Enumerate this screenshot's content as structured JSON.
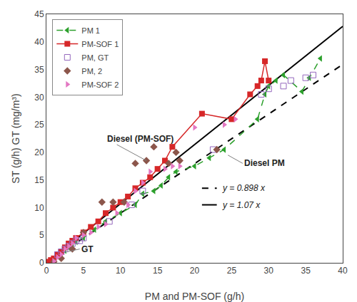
{
  "chart_data": {
    "type": "line",
    "xlabel": "PM and PM-SOF (g/h)",
    "ylabel": "ST (g/h) GT (mg/m³)",
    "xlim": [
      0,
      40
    ],
    "ylim": [
      0,
      45
    ],
    "xticks": [
      0,
      5,
      10,
      15,
      20,
      25,
      30,
      35,
      40
    ],
    "yticks": [
      0,
      5,
      10,
      15,
      20,
      25,
      30,
      35,
      40,
      45
    ],
    "grid": false,
    "legend": "upper left",
    "series": [
      {
        "type": "line",
        "x": [
          0,
          40
        ],
        "values": [
          0,
          35.92
        ],
        "line_style": "dashed",
        "color": "black"
      },
      {
        "type": "line",
        "x": [
          0,
          40
        ],
        "values": [
          0,
          42.8
        ],
        "line_style": "solid",
        "color": "black"
      },
      {
        "name": "PM 1",
        "type": "line",
        "line_style": "dashed",
        "marker": "triangle-left",
        "x": [
          0.5,
          0.8,
          1.0,
          1.5,
          2.0,
          2.5,
          3.0,
          3.5,
          4.0,
          5.0,
          6.5,
          8.0,
          10.0,
          12.0,
          13.0,
          14.5,
          15.5,
          16.5,
          17.5,
          20.0,
          22.0,
          24.0,
          28.5,
          29.5,
          30.0,
          31.0,
          32.0,
          34.5,
          35.5,
          37.0
        ],
        "values": [
          0.2,
          0.5,
          0.8,
          1.2,
          1.5,
          2.2,
          2.8,
          3.2,
          3.8,
          4.5,
          6.0,
          7.5,
          9.0,
          10.5,
          12.5,
          13.0,
          14.0,
          15.5,
          16.5,
          17.5,
          19.0,
          20.5,
          26.0,
          30.5,
          32.0,
          33.0,
          34.0,
          31.0,
          33.5,
          37.0
        ]
      },
      {
        "name": "PM-SOF 1",
        "type": "line",
        "line_style": "solid",
        "marker": "square",
        "x": [
          0.3,
          0.6,
          1.0,
          1.5,
          2.0,
          2.5,
          3.0,
          3.5,
          4.0,
          5.0,
          6.0,
          7.0,
          8.0,
          9.0,
          10.0,
          11.0,
          12.0,
          13.0,
          14.0,
          15.0,
          16.0,
          17.0,
          21.0,
          25.0,
          27.5,
          28.5,
          29.0,
          29.5,
          30.0
        ],
        "values": [
          0.2,
          0.5,
          0.8,
          1.5,
          2.0,
          2.8,
          3.5,
          4.0,
          4.5,
          5.5,
          6.5,
          7.5,
          9.0,
          10.0,
          11.0,
          12.0,
          13.5,
          14.5,
          15.5,
          17.0,
          18.5,
          21.0,
          27.0,
          26.0,
          30.5,
          32.0,
          33.0,
          36.5,
          33.0
        ]
      },
      {
        "name": "PM, GT",
        "type": "scatter",
        "marker": "square-open",
        "x": [
          1.5,
          2.0,
          2.5,
          3.0,
          3.5,
          4.0,
          4.5,
          5.0,
          8.5,
          11.5,
          13.0,
          22.5,
          29.0,
          30.0,
          32.0,
          33.0,
          35.0,
          36.0
        ],
        "values": [
          1.5,
          2.0,
          2.5,
          3.0,
          3.5,
          4.0,
          4.0,
          4.5,
          7.5,
          10.5,
          13.0,
          20.5,
          30.5,
          31.5,
          32.0,
          33.0,
          33.5,
          34.0
        ]
      },
      {
        "name": "PM, 2",
        "type": "scatter",
        "marker": "diamond",
        "x": [
          1.0,
          2.0,
          3.5,
          5.0,
          7.5,
          9.0,
          10.5,
          12.0,
          13.5,
          14.5,
          16.5,
          17.5,
          18.0,
          23.0
        ],
        "values": [
          0.2,
          0.8,
          2.5,
          5.5,
          11.0,
          11.0,
          11.0,
          18.0,
          18.5,
          21.0,
          18.0,
          20.0,
          18.5,
          20.5
        ]
      },
      {
        "name": "PM-SOF 2",
        "type": "scatter",
        "marker": "triangle-right",
        "x": [
          1.0,
          1.5,
          2.0,
          2.5,
          3.0,
          3.5,
          4.0,
          5.0,
          6.0,
          7.0,
          8.0,
          9.5,
          11.0,
          12.0,
          13.0,
          14.0,
          16.0,
          17.0,
          18.0,
          20.0,
          24.0,
          25.5
        ],
        "values": [
          0.3,
          1.0,
          1.5,
          2.5,
          3.0,
          3.5,
          4.5,
          5.0,
          5.5,
          6.5,
          7.0,
          9.0,
          10.5,
          13.0,
          14.5,
          16.5,
          17.0,
          17.5,
          17.5,
          24.5,
          25.0,
          26.0
        ]
      },
      {
        "type": "line",
        "x": [
          21.0,
          23.0
        ],
        "values": [
          13.5,
          13.5
        ],
        "line_style": "dashed",
        "color": "black"
      },
      {
        "type": "line",
        "x": [
          21.0,
          23.0
        ],
        "values": [
          10.5,
          10.5
        ],
        "line_style": "solid",
        "color": "black"
      }
    ],
    "annotations": [
      {
        "text": "GT",
        "x": 4.5,
        "y": 2.5,
        "arrow_x": 2.8,
        "arrow_y": 2.0
      },
      {
        "text": "Diesel (PM-SOF)",
        "x": 8.0,
        "y": 22.5,
        "arrow_x": 13.5,
        "arrow_y": 18.5
      },
      {
        "text": "Diesel PM",
        "x": 26.5,
        "y": 18.0,
        "arrow_x": 24.5,
        "arrow_y": 19.5
      },
      {
        "text": "y = 0.898 x",
        "x": 23.5,
        "y": 13.5
      },
      {
        "text": "y = 1.07 x",
        "x": 23.5,
        "y": 10.5
      }
    ]
  }
}
